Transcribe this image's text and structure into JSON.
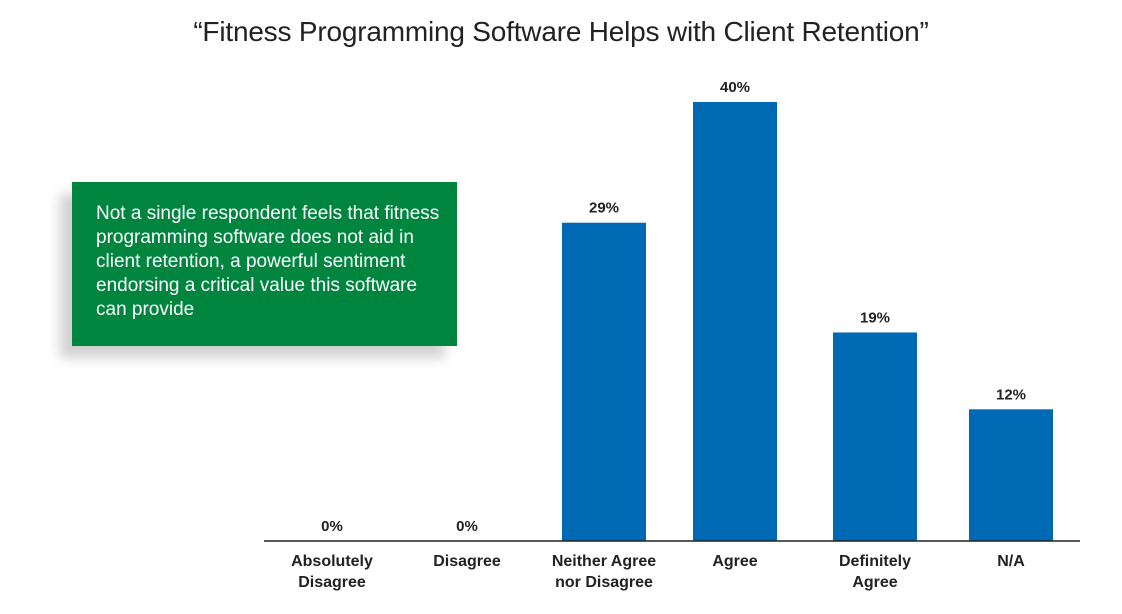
{
  "chart_data": {
    "type": "bar",
    "title": "“Fitness Programming Software Helps with Client Retention”",
    "categories": [
      [
        "Absolutely",
        "Disagree"
      ],
      [
        "Disagree"
      ],
      [
        "Neither Agree",
        "nor Disagree"
      ],
      [
        "Agree"
      ],
      [
        "Definitely",
        "Agree"
      ],
      [
        "N/A"
      ]
    ],
    "values": [
      0,
      0,
      29,
      40,
      19,
      12
    ],
    "value_labels": [
      "0%",
      "0%",
      "29%",
      "40%",
      "19%",
      "12%"
    ],
    "ylim": [
      0,
      40
    ],
    "grid": false,
    "bar_color": "#0069B4",
    "axis_color": "#222222"
  },
  "callout": {
    "text": "Not a single respondent feels that fitness programming software does not aid in client retention, a powerful sentiment endorsing a critical value this software can provide",
    "background": "#00853F"
  }
}
